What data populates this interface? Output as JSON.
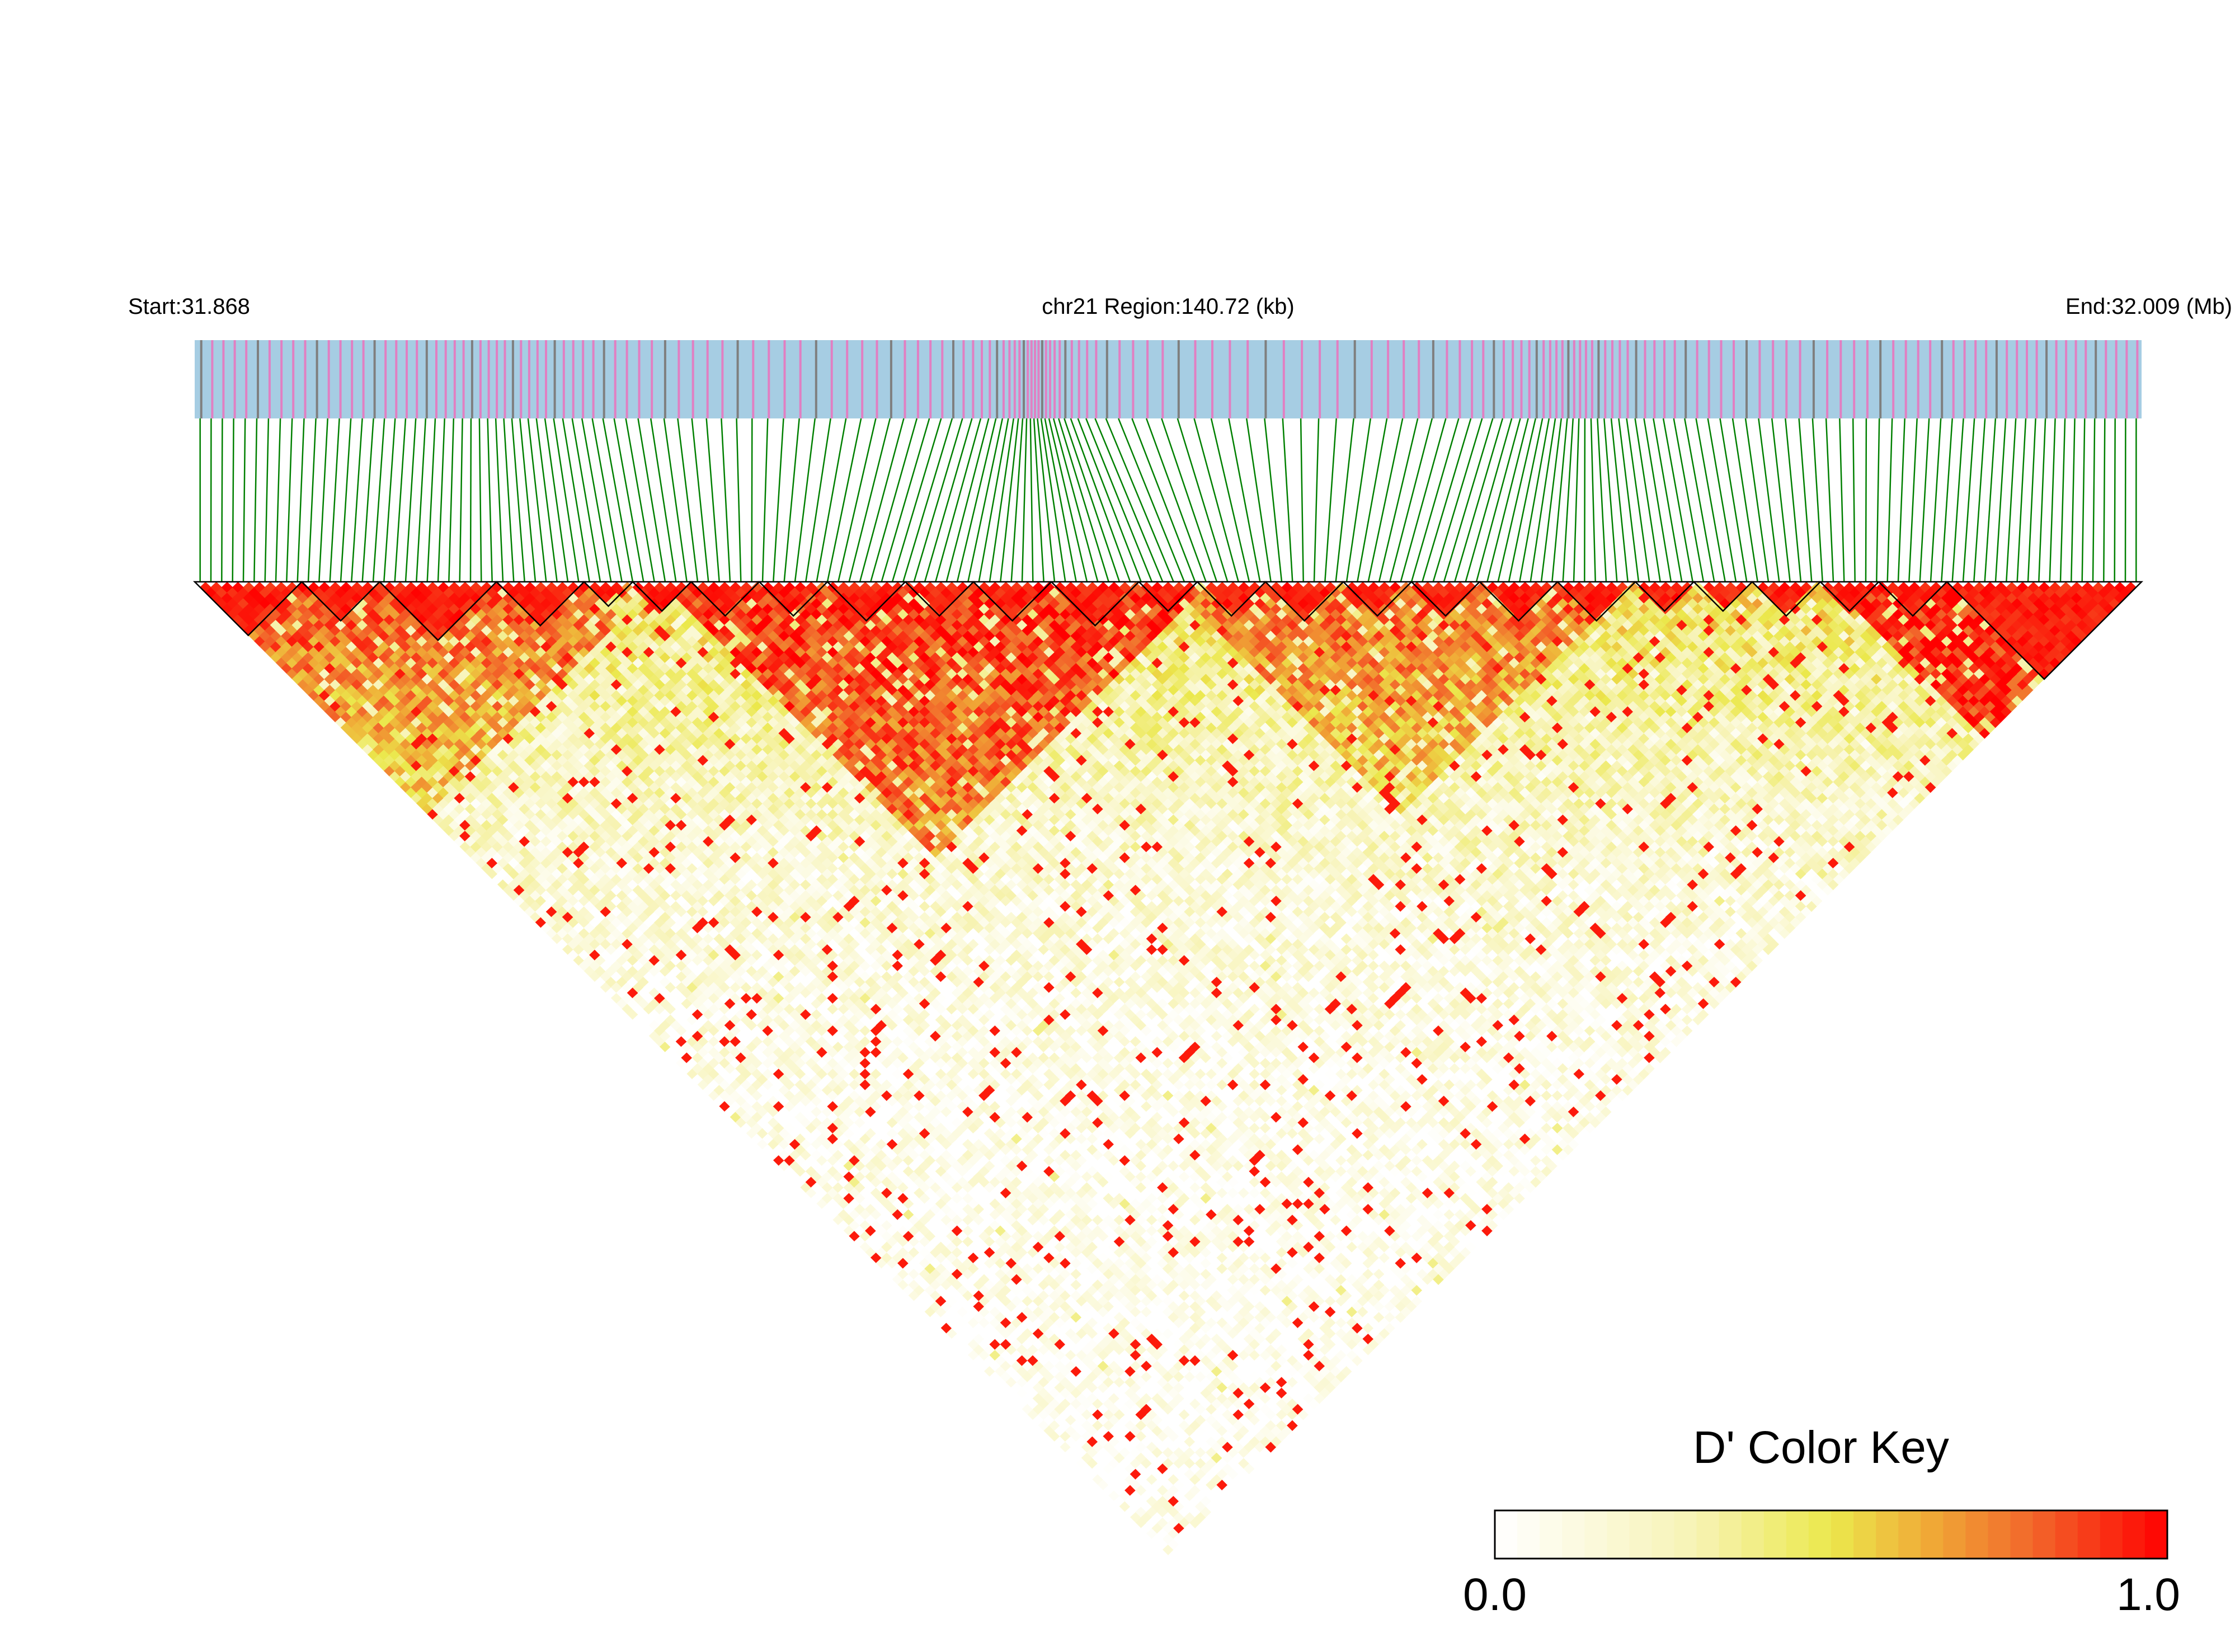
{
  "chart_data": {
    "type": "heatmap",
    "subtype": "linkage-disequilibrium-triangle",
    "header": {
      "start_label": "Start:31.868",
      "region_label": "chr21 Region:140.72 (kb)",
      "end_label": "End:32.009 (Mb)"
    },
    "region": {
      "chromosome": "chr21",
      "start_mb": 31.868,
      "end_mb": 32.009,
      "length_kb": 140.72
    },
    "metric": "D'",
    "color_key": {
      "title": "D' Color Key",
      "min_label": "0.0",
      "max_label": "1.0",
      "range": [
        0,
        1
      ],
      "stops": [
        {
          "value": 0.0,
          "color": "#ffffff"
        },
        {
          "value": 0.3,
          "color": "#f7f3b4"
        },
        {
          "value": 0.5,
          "color": "#ebe84c"
        },
        {
          "value": 0.65,
          "color": "#f0a836"
        },
        {
          "value": 0.8,
          "color": "#f2672b"
        },
        {
          "value": 1.0,
          "color": "#ff0000"
        }
      ]
    },
    "snp_density_track": {
      "background": "#a6cde3",
      "marker_colors": [
        "#e17fc2",
        "#7f7f7f"
      ]
    },
    "connector_color": "#008000",
    "high_ld_blocks_along_diagonal": [
      {
        "from_frac": 0.0,
        "to_frac": 0.055
      },
      {
        "from_frac": 0.055,
        "to_frac": 0.095
      },
      {
        "from_frac": 0.095,
        "to_frac": 0.155
      },
      {
        "from_frac": 0.155,
        "to_frac": 0.2
      },
      {
        "from_frac": 0.2,
        "to_frac": 0.225
      },
      {
        "from_frac": 0.225,
        "to_frac": 0.255
      },
      {
        "from_frac": 0.255,
        "to_frac": 0.29
      },
      {
        "from_frac": 0.29,
        "to_frac": 0.325
      },
      {
        "from_frac": 0.325,
        "to_frac": 0.365
      },
      {
        "from_frac": 0.365,
        "to_frac": 0.4
      },
      {
        "from_frac": 0.4,
        "to_frac": 0.44
      },
      {
        "from_frac": 0.44,
        "to_frac": 0.485
      },
      {
        "from_frac": 0.485,
        "to_frac": 0.515
      },
      {
        "from_frac": 0.515,
        "to_frac": 0.55
      },
      {
        "from_frac": 0.55,
        "to_frac": 0.59
      },
      {
        "from_frac": 0.59,
        "to_frac": 0.625
      },
      {
        "from_frac": 0.625,
        "to_frac": 0.66
      },
      {
        "from_frac": 0.66,
        "to_frac": 0.7
      },
      {
        "from_frac": 0.7,
        "to_frac": 0.74
      },
      {
        "from_frac": 0.74,
        "to_frac": 0.77
      },
      {
        "from_frac": 0.77,
        "to_frac": 0.8
      },
      {
        "from_frac": 0.8,
        "to_frac": 0.835
      },
      {
        "from_frac": 0.835,
        "to_frac": 0.865
      },
      {
        "from_frac": 0.865,
        "to_frac": 0.9
      },
      {
        "from_frac": 0.9,
        "to_frac": 1.0
      }
    ]
  }
}
